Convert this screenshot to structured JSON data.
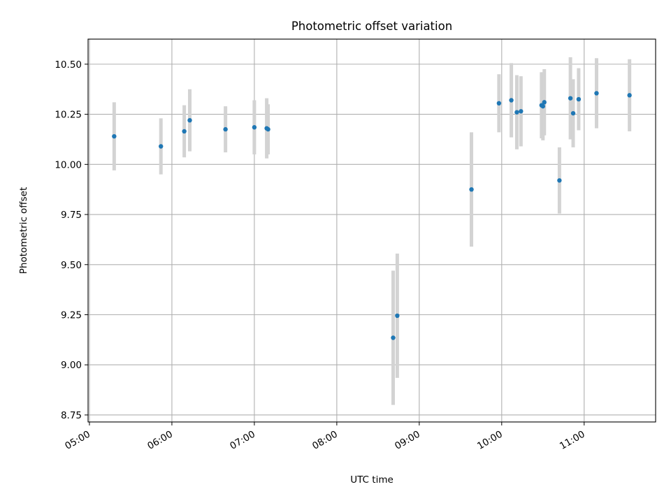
{
  "chart_data": {
    "type": "scatter",
    "title": "Photometric offset variation",
    "xlabel": "UTC time",
    "ylabel": "Photometric offset",
    "x_ticks": [
      "05:00",
      "06:00",
      "07:00",
      "08:00",
      "09:00",
      "10:00",
      "11:00"
    ],
    "y_ticks": [
      "8.75",
      "9.00",
      "9.25",
      "9.50",
      "9.75",
      "10.00",
      "10.25",
      "10.50"
    ],
    "xlim": [
      "04:59",
      "11:52"
    ],
    "ylim": [
      8.715,
      10.625
    ],
    "grid": true,
    "marker_color": "#1f77b4",
    "errorbar_color": "#d3d3d3",
    "points": [
      {
        "time": "05:18",
        "y": 10.14,
        "yerr": 0.17
      },
      {
        "time": "05:52",
        "y": 10.09,
        "yerr": 0.14
      },
      {
        "time": "06:09",
        "y": 10.165,
        "yerr": 0.13
      },
      {
        "time": "06:13",
        "y": 10.22,
        "yerr": 0.155
      },
      {
        "time": "06:39",
        "y": 10.175,
        "yerr": 0.115
      },
      {
        "time": "07:00",
        "y": 10.185,
        "yerr": 0.135
      },
      {
        "time": "07:09",
        "y": 10.18,
        "yerr": 0.15
      },
      {
        "time": "07:10",
        "y": 10.175,
        "yerr": 0.125
      },
      {
        "time": "08:41",
        "y": 9.135,
        "yerr": 0.335
      },
      {
        "time": "08:44",
        "y": 9.245,
        "yerr": 0.31
      },
      {
        "time": "09:38",
        "y": 9.875,
        "yerr": 0.285
      },
      {
        "time": "09:58",
        "y": 10.305,
        "yerr": 0.145
      },
      {
        "time": "10:07",
        "y": 10.32,
        "yerr": 0.185
      },
      {
        "time": "10:11",
        "y": 10.26,
        "yerr": 0.185
      },
      {
        "time": "10:14",
        "y": 10.265,
        "yerr": 0.175
      },
      {
        "time": "10:29",
        "y": 10.295,
        "yerr": 0.165
      },
      {
        "time": "10:30",
        "y": 10.29,
        "yerr": 0.17
      },
      {
        "time": "10:31",
        "y": 10.31,
        "yerr": 0.165
      },
      {
        "time": "10:42",
        "y": 9.92,
        "yerr": 0.165
      },
      {
        "time": "10:50",
        "y": 10.33,
        "yerr": 0.205
      },
      {
        "time": "10:52",
        "y": 10.255,
        "yerr": 0.17
      },
      {
        "time": "10:56",
        "y": 10.325,
        "yerr": 0.155
      },
      {
        "time": "11:09",
        "y": 10.355,
        "yerr": 0.175
      },
      {
        "time": "11:33",
        "y": 10.345,
        "yerr": 0.18
      }
    ]
  }
}
